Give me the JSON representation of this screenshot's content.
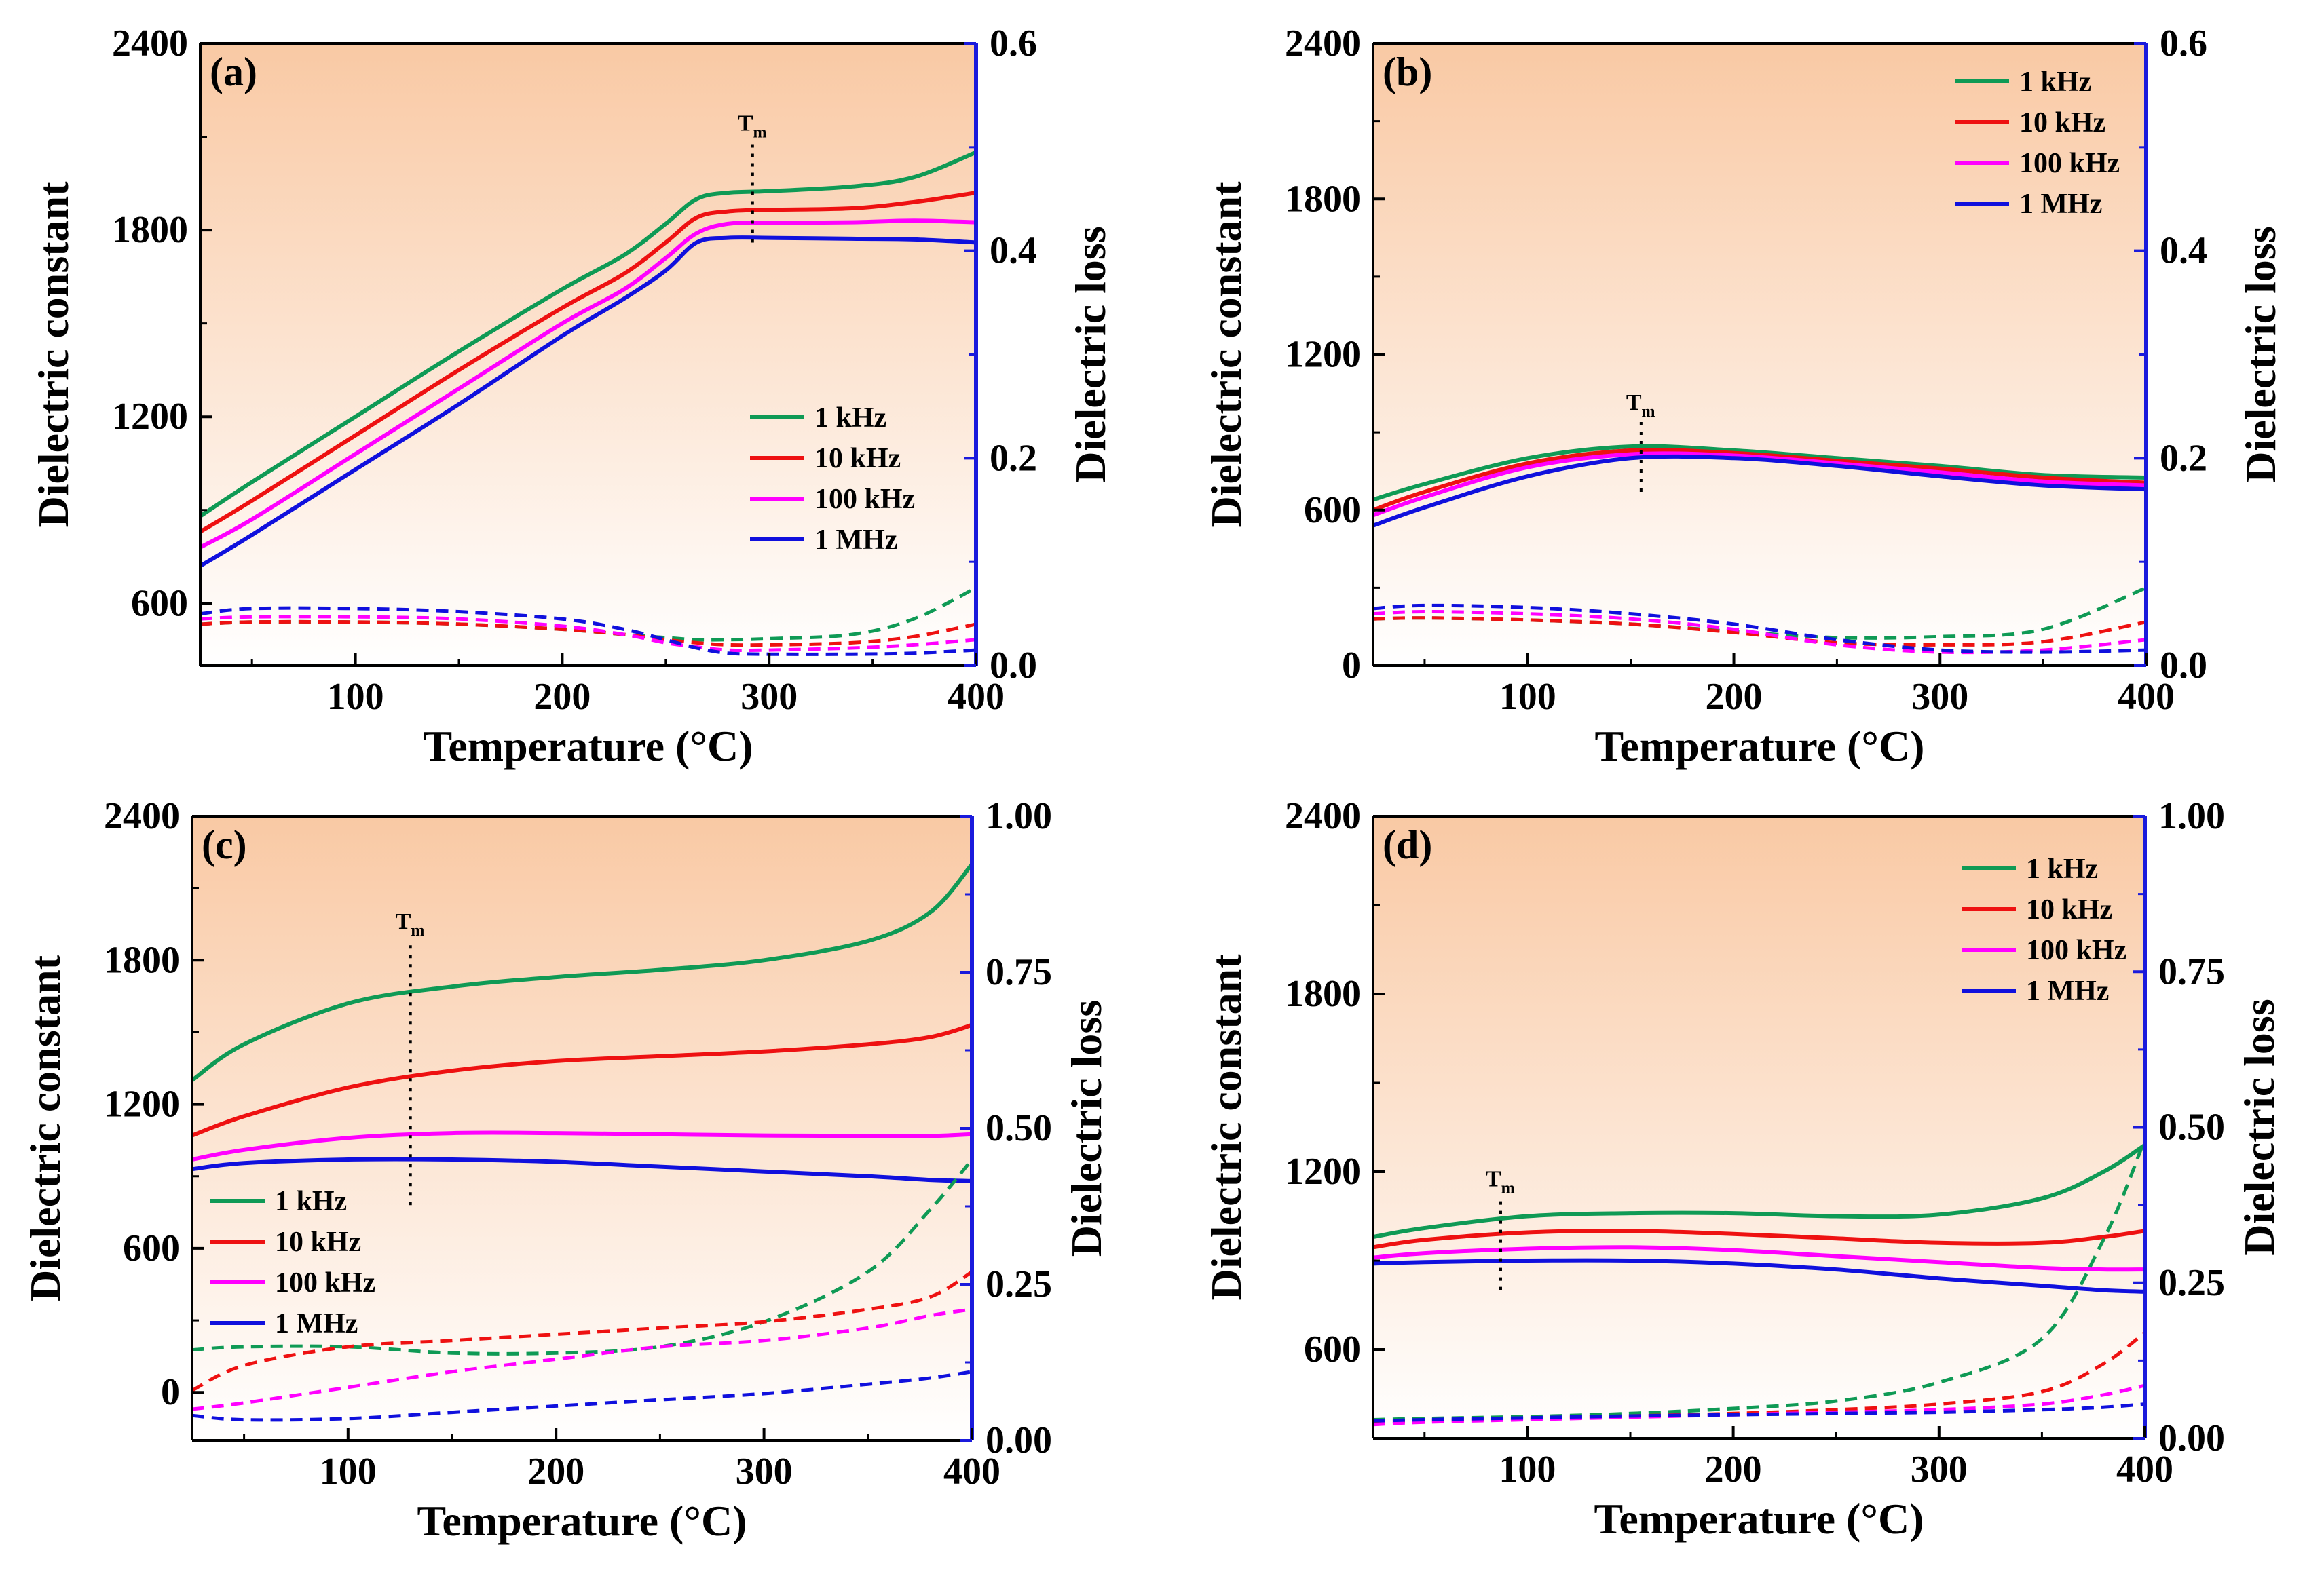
{
  "figure": {
    "colors": {
      "1 kHz": "#0f9a55",
      "10 kHz": "#ee1111",
      "100 kHz": "#ff00ff",
      "1 MHz": "#1010dd",
      "loss_axis": "#1a1adc",
      "bg_top": "#f9c9a4",
      "bg_bottom": "#ffffff"
    }
  },
  "chart_data": [
    {
      "type": "line",
      "panel": "(a)",
      "xlabel": "Temperature (°C)",
      "ylabel": "Dielectric constant",
      "y2label": "Dielectric loss",
      "xlim": [
        25,
        400
      ],
      "ylim": [
        400,
        2400
      ],
      "y2lim": [
        0,
        0.6
      ],
      "xticks": [
        100,
        200,
        300,
        400
      ],
      "yticks": [
        600,
        1200,
        1800,
        2400
      ],
      "y2ticks": [
        "0.0",
        "0.2",
        "0.4",
        "0.6"
      ],
      "legend": [
        "1 kHz",
        "10 kHz",
        "100 kHz",
        "1 MHz"
      ],
      "legend_position": "middle-right",
      "tm": {
        "label": "T",
        "sub": "m",
        "x": 292,
        "y_from": 1760,
        "y_to": 2080
      },
      "x": [
        25,
        50,
        100,
        150,
        200,
        230,
        250,
        265,
        280,
        300,
        340,
        370,
        400
      ],
      "series": [
        {
          "name": "1 kHz",
          "kind": "dielectric",
          "values": [
            880,
            990,
            1200,
            1410,
            1610,
            1720,
            1820,
            1900,
            1920,
            1925,
            1940,
            1970,
            2050
          ]
        },
        {
          "name": "10 kHz",
          "kind": "dielectric",
          "values": [
            830,
            930,
            1140,
            1350,
            1550,
            1660,
            1760,
            1840,
            1860,
            1865,
            1870,
            1890,
            1920
          ]
        },
        {
          "name": "100 kHz",
          "kind": "dielectric",
          "values": [
            780,
            870,
            1080,
            1290,
            1500,
            1610,
            1710,
            1790,
            1820,
            1823,
            1825,
            1830,
            1825
          ]
        },
        {
          "name": "1 MHz",
          "kind": "dielectric",
          "values": [
            720,
            820,
            1030,
            1240,
            1460,
            1580,
            1670,
            1760,
            1775,
            1775,
            1772,
            1770,
            1760
          ]
        },
        {
          "name": "1 kHz",
          "kind": "loss",
          "values": [
            0.04,
            0.042,
            0.042,
            0.04,
            0.035,
            0.03,
            0.027,
            0.025,
            0.025,
            0.026,
            0.03,
            0.045,
            0.075
          ]
        },
        {
          "name": "10 kHz",
          "kind": "loss",
          "values": [
            0.04,
            0.042,
            0.042,
            0.04,
            0.035,
            0.03,
            0.025,
            0.022,
            0.02,
            0.02,
            0.022,
            0.028,
            0.04
          ]
        },
        {
          "name": "100 kHz",
          "kind": "loss",
          "values": [
            0.045,
            0.047,
            0.047,
            0.045,
            0.038,
            0.03,
            0.022,
            0.018,
            0.015,
            0.015,
            0.017,
            0.02,
            0.025
          ]
        },
        {
          "name": "1 MHz",
          "kind": "loss",
          "values": [
            0.05,
            0.055,
            0.055,
            0.052,
            0.045,
            0.035,
            0.025,
            0.017,
            0.012,
            0.011,
            0.011,
            0.012,
            0.015
          ]
        }
      ]
    },
    {
      "type": "line",
      "panel": "(b)",
      "xlabel": "Temperature (°C)",
      "ylabel": "Dielectric constant",
      "y2label": "Dielectric loss",
      "xlim": [
        25,
        400
      ],
      "ylim": [
        0,
        2400
      ],
      "y2lim": [
        0,
        0.6
      ],
      "xticks": [
        100,
        200,
        300,
        400
      ],
      "yticks": [
        0,
        600,
        1200,
        1800,
        2400
      ],
      "y2ticks": [
        "0.0",
        "0.2",
        "0.4",
        "0.6"
      ],
      "legend": [
        "1 kHz",
        "10 kHz",
        "100 kHz",
        "1 MHz"
      ],
      "legend_position": "top-right",
      "tm": {
        "label": "T",
        "sub": "m",
        "x": 155,
        "y_from": 670,
        "y_to": 940
      },
      "x": [
        25,
        50,
        100,
        150,
        200,
        250,
        300,
        350,
        400
      ],
      "series": [
        {
          "name": "1 kHz",
          "kind": "dielectric",
          "values": [
            640,
            700,
            800,
            845,
            830,
            800,
            770,
            735,
            725
          ]
        },
        {
          "name": "10 kHz",
          "kind": "dielectric",
          "values": [
            600,
            670,
            780,
            830,
            820,
            790,
            760,
            725,
            705
          ]
        },
        {
          "name": "100 kHz",
          "kind": "dielectric",
          "values": [
            580,
            650,
            765,
            815,
            810,
            780,
            745,
            710,
            695
          ]
        },
        {
          "name": "1 MHz",
          "kind": "dielectric",
          "values": [
            540,
            610,
            730,
            800,
            800,
            770,
            730,
            695,
            680
          ]
        },
        {
          "name": "1 kHz",
          "kind": "loss",
          "values": [
            0.045,
            0.046,
            0.044,
            0.04,
            0.033,
            0.027,
            0.028,
            0.035,
            0.075
          ]
        },
        {
          "name": "10 kHz",
          "kind": "loss",
          "values": [
            0.045,
            0.046,
            0.044,
            0.04,
            0.032,
            0.022,
            0.02,
            0.023,
            0.042
          ]
        },
        {
          "name": "100 kHz",
          "kind": "loss",
          "values": [
            0.05,
            0.052,
            0.05,
            0.045,
            0.035,
            0.02,
            0.013,
            0.015,
            0.025
          ]
        },
        {
          "name": "1 MHz",
          "kind": "loss",
          "values": [
            0.055,
            0.058,
            0.056,
            0.05,
            0.04,
            0.025,
            0.015,
            0.013,
            0.015
          ]
        }
      ]
    },
    {
      "type": "line",
      "panel": "(c)",
      "xlabel": "Temperature (°C)",
      "ylabel": "Dielectric constant",
      "y2label": "Dielectric loss",
      "xlim": [
        25,
        400
      ],
      "ylim": [
        -200,
        2400
      ],
      "y2lim": [
        0,
        1
      ],
      "xticks": [
        100,
        200,
        300,
        400
      ],
      "yticks": [
        0,
        600,
        1200,
        1800,
        2400
      ],
      "y2ticks": [
        "0.00",
        "0.25",
        "0.50",
        "0.75",
        "1.00"
      ],
      "legend": [
        "1 kHz",
        "10 kHz",
        "100 kHz",
        "1 MHz"
      ],
      "legend_position": "bottom-left",
      "tm": {
        "label": "T",
        "sub": "m",
        "x": 130,
        "y_from": 780,
        "y_to": 1880
      },
      "x": [
        25,
        50,
        100,
        150,
        200,
        250,
        300,
        350,
        380,
        400
      ],
      "series": [
        {
          "name": "1 kHz",
          "kind": "dielectric",
          "values": [
            1300,
            1450,
            1620,
            1690,
            1730,
            1760,
            1800,
            1880,
            2000,
            2200
          ]
        },
        {
          "name": "10 kHz",
          "kind": "dielectric",
          "values": [
            1070,
            1150,
            1270,
            1340,
            1380,
            1400,
            1420,
            1450,
            1480,
            1530
          ]
        },
        {
          "name": "100 kHz",
          "kind": "dielectric",
          "values": [
            970,
            1010,
            1060,
            1080,
            1080,
            1075,
            1070,
            1068,
            1068,
            1075
          ]
        },
        {
          "name": "1 MHz",
          "kind": "dielectric",
          "values": [
            930,
            955,
            970,
            970,
            960,
            940,
            920,
            900,
            885,
            880
          ]
        },
        {
          "name": "1 kHz",
          "kind": "loss",
          "values": [
            0.145,
            0.15,
            0.15,
            0.14,
            0.14,
            0.15,
            0.19,
            0.27,
            0.37,
            0.45
          ]
        },
        {
          "name": "10 kHz",
          "kind": "loss",
          "values": [
            0.08,
            0.12,
            0.15,
            0.16,
            0.17,
            0.18,
            0.19,
            0.21,
            0.23,
            0.27
          ]
        },
        {
          "name": "100 kHz",
          "kind": "loss",
          "values": [
            0.05,
            0.06,
            0.085,
            0.11,
            0.13,
            0.15,
            0.16,
            0.18,
            0.2,
            0.21
          ]
        },
        {
          "name": "1 MHz",
          "kind": "loss",
          "values": [
            0.04,
            0.033,
            0.035,
            0.045,
            0.055,
            0.065,
            0.075,
            0.09,
            0.1,
            0.11
          ]
        }
      ]
    },
    {
      "type": "line",
      "panel": "(d)",
      "xlabel": "Temperature (°C)",
      "ylabel": "Dielectric constant",
      "y2label": "Dielectric loss",
      "xlim": [
        25,
        400
      ],
      "ylim": [
        300,
        2400
      ],
      "y2lim": [
        0,
        1
      ],
      "xticks": [
        100,
        200,
        300,
        400
      ],
      "yticks": [
        600,
        1200,
        1800,
        2400
      ],
      "y2ticks": [
        "0.00",
        "0.25",
        "0.50",
        "0.75",
        "1.00"
      ],
      "legend": [
        "1 kHz",
        "10 kHz",
        "100 kHz",
        "1 MHz"
      ],
      "legend_position": "top-right",
      "tm": {
        "label": "T",
        "sub": "m",
        "x": 87,
        "y_from": 800,
        "y_to": 1110
      },
      "x": [
        25,
        50,
        100,
        150,
        200,
        250,
        300,
        350,
        380,
        400
      ],
      "series": [
        {
          "name": "1 kHz",
          "kind": "dielectric",
          "values": [
            980,
            1010,
            1050,
            1060,
            1060,
            1050,
            1055,
            1110,
            1200,
            1290
          ]
        },
        {
          "name": "10 kHz",
          "kind": "dielectric",
          "values": [
            945,
            970,
            995,
            1000,
            990,
            975,
            960,
            960,
            980,
            1000
          ]
        },
        {
          "name": "100 kHz",
          "kind": "dielectric",
          "values": [
            910,
            925,
            940,
            945,
            935,
            915,
            895,
            875,
            870,
            870
          ]
        },
        {
          "name": "1 MHz",
          "kind": "dielectric",
          "values": [
            890,
            895,
            900,
            900,
            890,
            870,
            840,
            815,
            800,
            795
          ]
        },
        {
          "name": "1 kHz",
          "kind": "loss",
          "values": [
            0.03,
            0.032,
            0.035,
            0.04,
            0.048,
            0.06,
            0.09,
            0.16,
            0.32,
            0.48
          ]
        },
        {
          "name": "10 kHz",
          "kind": "loss",
          "values": [
            0.025,
            0.028,
            0.032,
            0.036,
            0.04,
            0.046,
            0.055,
            0.075,
            0.12,
            0.17
          ]
        },
        {
          "name": "100 kHz",
          "kind": "loss",
          "values": [
            0.022,
            0.026,
            0.03,
            0.034,
            0.038,
            0.042,
            0.046,
            0.055,
            0.07,
            0.085
          ]
        },
        {
          "name": "1 MHz",
          "kind": "loss",
          "values": [
            0.028,
            0.03,
            0.033,
            0.036,
            0.038,
            0.04,
            0.042,
            0.046,
            0.05,
            0.055
          ]
        }
      ]
    }
  ]
}
